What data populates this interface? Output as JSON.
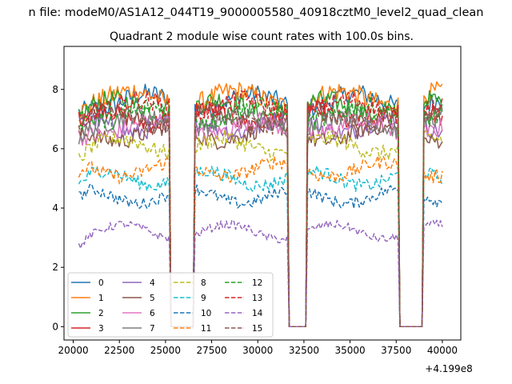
{
  "figure": {
    "suptitle": "n file: modeM0/AS1A12_044T19_9000005580_40918cztM0_level2_quad_clean"
  },
  "chart_data": {
    "type": "line",
    "title": "Quadrant 2 module wise count rates with 100.0s bins.",
    "xlabel": "",
    "ylabel": "",
    "x_offset_label": "+4.199e8",
    "xlim": [
      19500,
      41000
    ],
    "ylim": [
      -0.45,
      9.45
    ],
    "x_ticks": [
      20000,
      22500,
      25000,
      27500,
      30000,
      32500,
      35000,
      37500,
      40000
    ],
    "x_tick_labels": [
      "20000",
      "22500",
      "25000",
      "27500",
      "30000",
      "32500",
      "35000",
      "37500",
      "40000"
    ],
    "y_ticks": [
      0,
      2,
      4,
      6,
      8
    ],
    "y_tick_labels": [
      "0",
      "2",
      "4",
      "6",
      "8"
    ],
    "grid": false,
    "legend_placement": "lower-left",
    "legend_columns": 4,
    "bin_width": 100,
    "x_range": [
      20300,
      40000
    ],
    "gaps": [
      [
        25200,
        26600
      ],
      [
        31600,
        32700
      ],
      [
        37600,
        39000
      ]
    ],
    "series": [
      {
        "name": "0",
        "color": "#1f77b4",
        "dash": "solid",
        "level": 7.6
      },
      {
        "name": "1",
        "color": "#ff7f0e",
        "dash": "solid",
        "level": 7.7
      },
      {
        "name": "2",
        "color": "#2ca02c",
        "dash": "solid",
        "level": 7.4
      },
      {
        "name": "3",
        "color": "#d62728",
        "dash": "solid",
        "level": 7.1
      },
      {
        "name": "4",
        "color": "#9467bd",
        "dash": "solid",
        "level": 6.8
      },
      {
        "name": "5",
        "color": "#8c564b",
        "dash": "solid",
        "level": 6.5
      },
      {
        "name": "6",
        "color": "#e377c2",
        "dash": "solid",
        "level": 6.7
      },
      {
        "name": "7",
        "color": "#7f7f7f",
        "dash": "solid",
        "level": 6.9
      },
      {
        "name": "8",
        "color": "#bcbd22",
        "dash": "dashed",
        "level": 6.1
      },
      {
        "name": "9",
        "color": "#17becf",
        "dash": "dashed",
        "level": 5.0
      },
      {
        "name": "10",
        "color": "#1f77b4",
        "dash": "dashed",
        "level": 4.4
      },
      {
        "name": "11",
        "color": "#ff7f0e",
        "dash": "dashed",
        "level": 5.3
      },
      {
        "name": "12",
        "color": "#2ca02c",
        "dash": "dashed",
        "level": 7.2
      },
      {
        "name": "13",
        "color": "#d62728",
        "dash": "dashed",
        "level": 7.4
      },
      {
        "name": "14",
        "color": "#9467bd",
        "dash": "dashed",
        "level": 3.2
      },
      {
        "name": "15",
        "color": "#8c564b",
        "dash": "dashed",
        "level": 7.0
      }
    ]
  }
}
